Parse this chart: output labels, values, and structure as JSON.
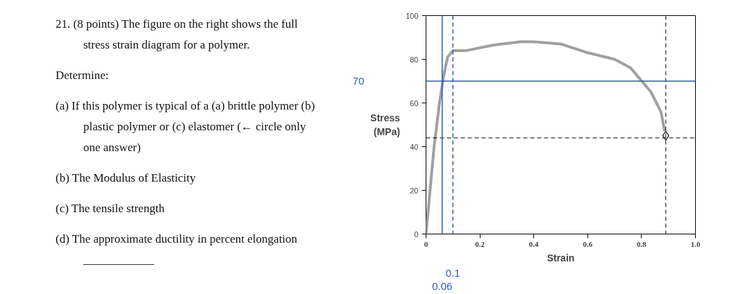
{
  "chart_data": {
    "type": "line",
    "xlabel": "Strain",
    "ylabel": "Stress (MPa)",
    "xlim": [
      0,
      1.0
    ],
    "ylim": [
      0,
      100
    ],
    "xticks": [
      0,
      {
        "value": 0.2,
        "label": "0.2"
      },
      {
        "value": 0.4,
        "label": "0.4"
      },
      {
        "value": 0.6,
        "label": "0.6"
      },
      {
        "value": 0.8,
        "label": "0.8"
      },
      {
        "value": 1.0,
        "label": "1.0"
      }
    ],
    "yticks": [
      0,
      20,
      40,
      60,
      80,
      100
    ],
    "grid": false,
    "series": [
      {
        "color": "#a0a0a0",
        "x": [
          0,
          0.03,
          0.05,
          0.065,
          0.08,
          0.1,
          0.15,
          0.25,
          0.35,
          0.4,
          0.5,
          0.6,
          0.7,
          0.76,
          0.835,
          0.872,
          0.886
        ],
        "values": [
          0,
          40,
          60,
          72,
          81,
          84,
          84,
          86.5,
          88,
          88,
          87,
          83,
          80,
          76,
          65,
          56,
          47
        ]
      },
      {
        "type": "scatter",
        "marker": "diamond",
        "color": "#000000",
        "x": [
          0.89
        ],
        "values": [
          45
        ]
      }
    ],
    "ref_lines": [
      {
        "axis": "x",
        "value": 0.89,
        "color": "#000000",
        "line_style": "dashed"
      },
      {
        "axis": "y",
        "value": 44,
        "color": "#000000",
        "line_style": "dashed"
      },
      {
        "axis": "x",
        "value": 0.06,
        "label": "0.06",
        "color": "#2a5bc4",
        "line_style": "solid"
      },
      {
        "axis": "x",
        "value": 0.1,
        "label": "0.1",
        "color": "#2a5bc4",
        "line_style": "dashed"
      },
      {
        "axis": "y",
        "value": 70,
        "label": "70",
        "color": "#2a5bc4",
        "line_style": "solid"
      }
    ],
    "annotations": [
      "21. (8 points) The figure on the right shows the full stress strain diagram for a polymer.",
      "Determine:",
      "(a) If this polymer is typical of a (a) brittle polymer (b) plastic polymer or (c) elastomer (← circle only one answer)",
      "(b) The Modulus of Elasticity",
      "(c) The tensile strength",
      "(d) The approximate ductility in percent elongation ____________"
    ]
  }
}
